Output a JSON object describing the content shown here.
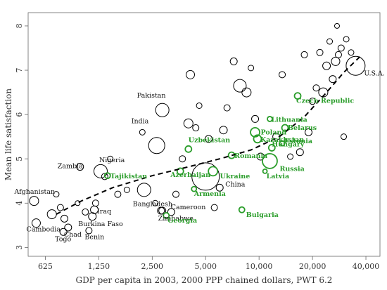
{
  "chart_data": {
    "type": "scatter",
    "title": "",
    "xlabel": "GDP per capita in 2003, 2000 PPP chained dollars, PWT 6.2",
    "ylabel": "Mean life satisfaction",
    "x_scale": "log",
    "xlim": [
      500,
      48000
    ],
    "ylim": [
      2.8,
      8.3
    ],
    "x_ticks": [
      625,
      1250,
      2500,
      5000,
      10000,
      20000,
      40000
    ],
    "x_tick_labels": [
      "625",
      "1,250",
      "2,500",
      "5,000",
      "10,000",
      "20,000",
      "40,000"
    ],
    "y_ticks": [
      3,
      4,
      5,
      6,
      7,
      8
    ],
    "y_tick_labels": [
      "3",
      "4",
      "5",
      "6",
      "7",
      "8"
    ],
    "colors": {
      "default": "#000000",
      "transition": "#2a9d2a",
      "fit": "#000000"
    },
    "fit_line": {
      "x": [
        720,
        1000,
        1500,
        2500,
        4000,
        6000,
        9000,
        13000,
        18000,
        24000,
        30000,
        38000
      ],
      "y": [
        3.75,
        4.05,
        4.35,
        4.62,
        4.82,
        5.0,
        5.2,
        5.5,
        5.95,
        6.5,
        6.95,
        7.35
      ]
    },
    "points": [
      {
        "label": "Afghanistan",
        "x": 540,
        "y": 4.05,
        "size": 10,
        "group": "default"
      },
      {
        "label": "Cambodia",
        "x": 555,
        "y": 3.55,
        "size": 9,
        "group": "default"
      },
      {
        "label": "Togo",
        "x": 790,
        "y": 3.35,
        "size": 7,
        "group": "default"
      },
      {
        "label": "Chad",
        "x": 840,
        "y": 3.45,
        "size": 7,
        "group": "default"
      },
      {
        "label": "Benin",
        "x": 1100,
        "y": 3.38,
        "size": 6,
        "group": "default"
      },
      {
        "label": "Burkina Faso",
        "x": 1150,
        "y": 3.7,
        "size": 8,
        "group": "default"
      },
      {
        "label": "Iraq",
        "x": 1180,
        "y": 3.85,
        "size": 8,
        "group": "default"
      },
      {
        "label": "Zambia",
        "x": 980,
        "y": 4.82,
        "size": 7,
        "group": "default"
      },
      {
        "label": "Nigeria",
        "x": 1280,
        "y": 4.72,
        "size": 16,
        "group": "default"
      },
      {
        "label": "Pakistan",
        "x": 2850,
        "y": 6.1,
        "size": 16,
        "group": "default"
      },
      {
        "label": "India",
        "x": 2650,
        "y": 5.3,
        "size": 20,
        "group": "default"
      },
      {
        "label": "Bangladesh",
        "x": 2250,
        "y": 4.3,
        "size": 16,
        "group": "default"
      },
      {
        "label": "Cameroon",
        "x": 2800,
        "y": 3.83,
        "size": 7,
        "group": "default"
      },
      {
        "label": "Zimbabwe",
        "x": 2850,
        "y": 3.83,
        "size": 7,
        "group": "default"
      },
      {
        "label": "China",
        "x": 5000,
        "y": 4.6,
        "size": 36,
        "group": "default"
      },
      {
        "label": "U.S.A.",
        "x": 35000,
        "y": 7.1,
        "size": 24,
        "group": "default"
      },
      {
        "label": "Uzbekistan",
        "x": 4000,
        "y": 5.22,
        "size": 6,
        "group": "transition"
      },
      {
        "label": "Azerbaijan",
        "x": 3600,
        "y": 4.72,
        "size": 6,
        "group": "transition"
      },
      {
        "label": "Tajikistan",
        "x": 1400,
        "y": 4.62,
        "size": 5,
        "group": "transition"
      },
      {
        "label": "Armenia",
        "x": 4300,
        "y": 4.32,
        "size": 4,
        "group": "transition"
      },
      {
        "label": "Georgia",
        "x": 3000,
        "y": 3.72,
        "size": 5,
        "group": "transition"
      },
      {
        "label": "Ukraine",
        "x": 5500,
        "y": 4.72,
        "size": 10,
        "group": "transition"
      },
      {
        "label": "Romania",
        "x": 7000,
        "y": 5.08,
        "size": 6,
        "group": "transition"
      },
      {
        "label": "Bulgaria",
        "x": 8000,
        "y": 3.85,
        "size": 5,
        "group": "transition"
      },
      {
        "label": "Latvia",
        "x": 10800,
        "y": 4.72,
        "size": 3,
        "group": "transition"
      },
      {
        "label": "Russia",
        "x": 11500,
        "y": 4.95,
        "size": 18,
        "group": "transition"
      },
      {
        "label": "Poland",
        "x": 9500,
        "y": 5.6,
        "size": 10,
        "group": "transition"
      },
      {
        "label": "Kazakhstan",
        "x": 9800,
        "y": 5.45,
        "size": 8,
        "group": "transition"
      },
      {
        "label": "Hungary",
        "x": 11800,
        "y": 5.25,
        "size": 6,
        "group": "transition"
      },
      {
        "label": "Estonia",
        "x": 13500,
        "y": 5.35,
        "size": 4,
        "group": "transition"
      },
      {
        "label": "Lithuania",
        "x": 11500,
        "y": 5.9,
        "size": 4,
        "group": "transition"
      },
      {
        "label": "Belarus",
        "x": 14000,
        "y": 5.7,
        "size": 6,
        "group": "transition"
      },
      {
        "label": "Czech Republic",
        "x": 16500,
        "y": 6.42,
        "size": 6,
        "group": "transition"
      }
    ],
    "unlabeled_points": [
      {
        "x": 680,
        "y": 3.75,
        "size": 10
      },
      {
        "x": 720,
        "y": 4.2,
        "size": 5
      },
      {
        "x": 760,
        "y": 3.9,
        "size": 6
      },
      {
        "x": 800,
        "y": 3.65,
        "size": 7
      },
      {
        "x": 950,
        "y": 4.0,
        "size": 4
      },
      {
        "x": 1050,
        "y": 3.8,
        "size": 6
      },
      {
        "x": 1200,
        "y": 4.0,
        "size": 6
      },
      {
        "x": 1350,
        "y": 4.6,
        "size": 6
      },
      {
        "x": 1450,
        "y": 5.0,
        "size": 5
      },
      {
        "x": 1600,
        "y": 4.2,
        "size": 6
      },
      {
        "x": 1800,
        "y": 4.3,
        "size": 5
      },
      {
        "x": 2200,
        "y": 5.6,
        "size": 5
      },
      {
        "x": 2600,
        "y": 4.0,
        "size": 5
      },
      {
        "x": 3200,
        "y": 3.8,
        "size": 7
      },
      {
        "x": 3400,
        "y": 4.2,
        "size": 6
      },
      {
        "x": 3700,
        "y": 5.0,
        "size": 6
      },
      {
        "x": 4000,
        "y": 5.8,
        "size": 10
      },
      {
        "x": 4100,
        "y": 6.9,
        "size": 9
      },
      {
        "x": 4400,
        "y": 5.7,
        "size": 6
      },
      {
        "x": 4600,
        "y": 6.2,
        "size": 5
      },
      {
        "x": 5200,
        "y": 5.45,
        "size": 7
      },
      {
        "x": 5600,
        "y": 3.9,
        "size": 6
      },
      {
        "x": 6000,
        "y": 4.35,
        "size": 7
      },
      {
        "x": 6300,
        "y": 5.65,
        "size": 8
      },
      {
        "x": 6600,
        "y": 6.15,
        "size": 6
      },
      {
        "x": 7200,
        "y": 7.2,
        "size": 7
      },
      {
        "x": 7800,
        "y": 6.65,
        "size": 15
      },
      {
        "x": 8500,
        "y": 6.5,
        "size": 10
      },
      {
        "x": 9000,
        "y": 7.05,
        "size": 5
      },
      {
        "x": 9500,
        "y": 5.9,
        "size": 7
      },
      {
        "x": 10200,
        "y": 5.05,
        "size": 7
      },
      {
        "x": 12500,
        "y": 5.5,
        "size": 7
      },
      {
        "x": 13500,
        "y": 6.9,
        "size": 6
      },
      {
        "x": 15000,
        "y": 5.05,
        "size": 5
      },
      {
        "x": 17000,
        "y": 5.15,
        "size": 7
      },
      {
        "x": 19000,
        "y": 5.6,
        "size": 7
      },
      {
        "x": 20000,
        "y": 6.3,
        "size": 6
      },
      {
        "x": 21000,
        "y": 6.6,
        "size": 6
      },
      {
        "x": 23000,
        "y": 6.5,
        "size": 10
      },
      {
        "x": 24000,
        "y": 7.1,
        "size": 8
      },
      {
        "x": 26000,
        "y": 6.8,
        "size": 7
      },
      {
        "x": 27000,
        "y": 7.2,
        "size": 9
      },
      {
        "x": 28000,
        "y": 7.35,
        "size": 6
      },
      {
        "x": 29000,
        "y": 7.5,
        "size": 6
      },
      {
        "x": 31000,
        "y": 7.7,
        "size": 5
      },
      {
        "x": 33000,
        "y": 7.4,
        "size": 5
      },
      {
        "x": 25000,
        "y": 7.65,
        "size": 5
      },
      {
        "x": 30000,
        "y": 5.5,
        "size": 5
      },
      {
        "x": 27500,
        "y": 8.0,
        "size": 4
      },
      {
        "x": 22000,
        "y": 7.4,
        "size": 6
      },
      {
        "x": 18000,
        "y": 7.35,
        "size": 6
      }
    ]
  }
}
